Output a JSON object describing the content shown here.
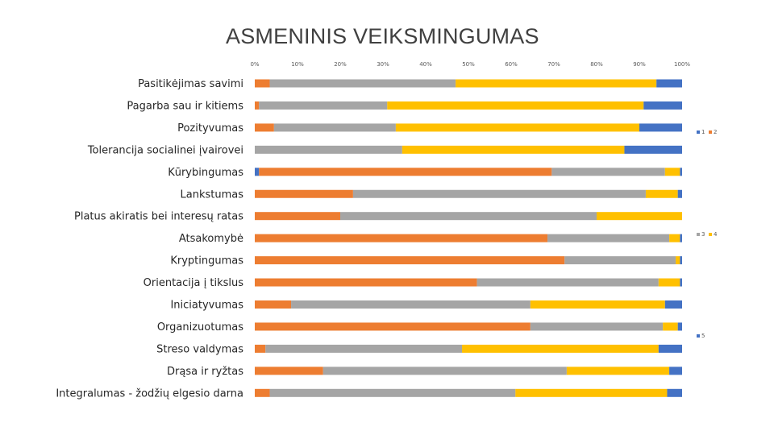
{
  "chart_data": {
    "type": "bar",
    "orientation": "horizontal",
    "stacked": "percent",
    "title": "ASMENINIS VEIKSMINGUMAS",
    "xlim": [
      0,
      100
    ],
    "x_ticks": [
      "0%",
      "10%",
      "20%",
      "30%",
      "40%",
      "50%",
      "60%",
      "70%",
      "80%",
      "90%",
      "100%"
    ],
    "grid": false,
    "categories": [
      "Pasitikėjimas savimi",
      "Pagarba sau ir kitiems",
      "Pozityvumas",
      "Tolerancija socialinei įvairovei",
      "Kūrybingumas",
      "Lankstumas",
      "Platus akiratis bei interesų ratas",
      "Atsakomybė",
      "Kryptingumas",
      "Orientacija į tikslus",
      "Iniciatyvumas",
      "Organizuotumas",
      "Streso valdymas",
      "Drąsa ir ryžtas",
      "Integralumas - žodžių elgesio darna"
    ],
    "series": [
      {
        "name": "1",
        "color": "#4472C4",
        "values": [
          0,
          0,
          0,
          0,
          1,
          0,
          0,
          0,
          0,
          0,
          0,
          0,
          0,
          0,
          0
        ]
      },
      {
        "name": "2",
        "color": "#ED7D31",
        "values": [
          3.5,
          1,
          4.5,
          0,
          68.5,
          23,
          20,
          68.5,
          72.5,
          52,
          8.5,
          64.5,
          2.5,
          16,
          3.5
        ]
      },
      {
        "name": "3",
        "color": "#A5A5A5",
        "values": [
          43.5,
          30,
          28.5,
          34.5,
          26.5,
          68.5,
          60,
          28.5,
          26,
          42.5,
          56,
          31,
          46,
          57,
          57.5
        ]
      },
      {
        "name": "4",
        "color": "#FFC000",
        "values": [
          47,
          60,
          57,
          52,
          3.5,
          7.5,
          20,
          2.5,
          1,
          5,
          31.5,
          3.5,
          46,
          24,
          35.5
        ]
      },
      {
        "name": "5",
        "color": "#4472C4",
        "values": [
          6,
          9,
          10,
          13.5,
          0.5,
          1,
          0,
          0.5,
          0.5,
          0.5,
          4,
          1,
          5.5,
          3,
          3.5
        ]
      }
    ],
    "legend": [
      "1",
      "2",
      "3",
      "4",
      "5"
    ],
    "legend_placement": "right"
  }
}
